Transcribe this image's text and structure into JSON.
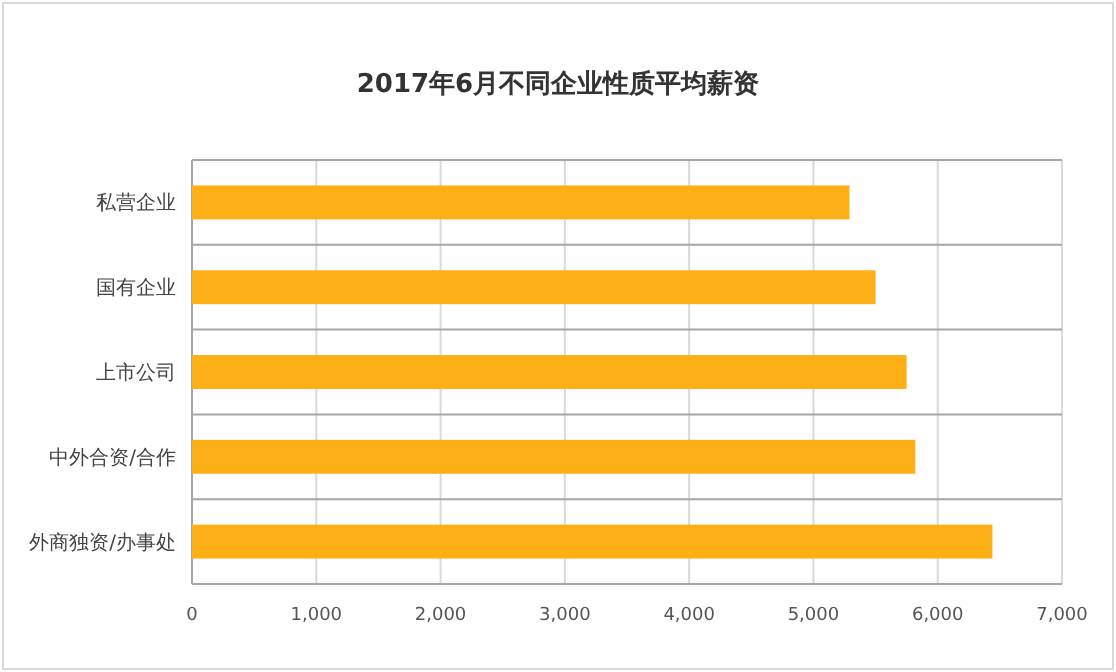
{
  "chart_data": {
    "type": "bar",
    "orientation": "horizontal",
    "title": "2017年6月不同企业性质平均薪资",
    "categories": [
      "私营企业",
      "国有企业",
      "上市公司",
      "中外合资/合作",
      "外商独资/办事处"
    ],
    "values": [
      5290,
      5500,
      5750,
      5820,
      6440
    ],
    "color": "#fdb016",
    "xlim": [
      0,
      7000
    ],
    "xticks": [
      {
        "value": 0,
        "label": "0"
      },
      {
        "value": 1000,
        "label": "1,000"
      },
      {
        "value": 2000,
        "label": "2,000"
      },
      {
        "value": 3000,
        "label": "3,000"
      },
      {
        "value": 4000,
        "label": "4,000"
      },
      {
        "value": 5000,
        "label": "5,000"
      },
      {
        "value": 6000,
        "label": "6,000"
      },
      {
        "value": 7000,
        "label": "7,000"
      }
    ],
    "grid": true
  }
}
